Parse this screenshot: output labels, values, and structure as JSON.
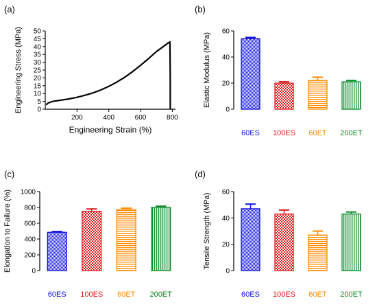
{
  "figure": {
    "panel_labels": [
      "(a)",
      "(b)",
      "(c)",
      "(d)"
    ],
    "colors": {
      "60ES": "#1010e0",
      "100ES": "#e01818",
      "60ET": "#ff8a00",
      "200ET": "#0a8a2a",
      "axis": "#000000"
    },
    "icons": {
      "60ES": "dense-dot-pattern",
      "100ES": "checkerboard-pattern",
      "60ET": "horizontal-stripe-pattern",
      "200ET": "vertical-stripe-pattern"
    }
  },
  "chart_data": [
    {
      "panel": "(a)",
      "type": "line",
      "title": "",
      "xlabel": "Engineering Strain (%)",
      "ylabel": "Engineering Stress (MPa)",
      "xlim": [
        0,
        820
      ],
      "ylim": [
        0,
        50
      ],
      "xticks": [
        200,
        400,
        600,
        800
      ],
      "yticks": [
        0,
        5,
        10,
        15,
        20,
        25,
        30,
        35,
        40,
        45,
        50
      ],
      "series": [
        {
          "x": [
            5,
            20,
            40,
            60,
            80,
            100,
            150,
            200,
            250,
            300,
            350,
            400,
            450,
            500,
            550,
            600,
            650,
            700,
            740,
            770,
            785,
            787,
            787
          ],
          "y": [
            2.8,
            4.0,
            4.8,
            5.2,
            5.5,
            5.8,
            6.6,
            7.6,
            8.9,
            10.4,
            12.3,
            14.6,
            17.3,
            20.4,
            24.0,
            28.0,
            32.3,
            36.8,
            39.8,
            42.0,
            43.0,
            20.0,
            0
          ]
        }
      ]
    },
    {
      "panel": "(b)",
      "type": "bar",
      "title": "",
      "xlabel": "",
      "ylabel": "Elastic Modulus (MPa)",
      "ylim": [
        0,
        60
      ],
      "yticks": [
        0,
        20,
        40,
        60
      ],
      "categories": [
        "60ES",
        "100ES",
        "60ET",
        "200ET"
      ],
      "values": [
        54,
        20,
        22,
        21
      ],
      "errors": [
        1,
        1,
        2.5,
        1
      ]
    },
    {
      "panel": "(c)",
      "type": "bar",
      "title": "",
      "xlabel": "",
      "ylabel": "Elongation to Failure (%)",
      "ylim": [
        0,
        1000
      ],
      "yticks": [
        0,
        200,
        400,
        600,
        800,
        1000
      ],
      "categories": [
        "60ES",
        "100ES",
        "60ET",
        "200ET"
      ],
      "values": [
        485,
        750,
        775,
        800
      ],
      "errors": [
        10,
        30,
        15,
        15
      ]
    },
    {
      "panel": "(d)",
      "type": "bar",
      "title": "",
      "xlabel": "",
      "ylabel": "Tensile Strength (MPa)",
      "ylim": [
        0,
        60
      ],
      "yticks": [
        0,
        20,
        40,
        60
      ],
      "categories": [
        "60ES",
        "100ES",
        "60ET",
        "200ET"
      ],
      "values": [
        47,
        43,
        27,
        43
      ],
      "errors": [
        3.5,
        3,
        3,
        1.5
      ]
    }
  ]
}
